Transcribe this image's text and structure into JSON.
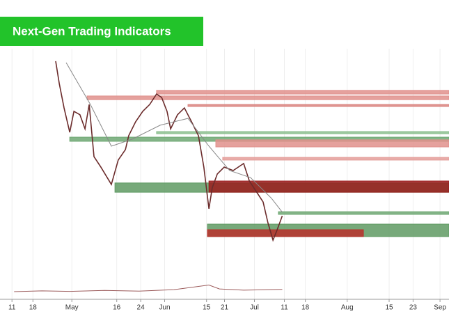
{
  "chart_data": {
    "type": "line",
    "title": "Next-Gen Trading Indicators",
    "xlim": [
      -4,
      146
    ],
    "ylim": [
      0,
      100
    ],
    "grid": true,
    "xticks": [
      {
        "value": 0,
        "label": "11"
      },
      {
        "value": 7,
        "label": "18"
      },
      {
        "value": 20,
        "label": "May"
      },
      {
        "value": 35,
        "label": "16"
      },
      {
        "value": 43,
        "label": "24"
      },
      {
        "value": 51,
        "label": "Jun"
      },
      {
        "value": 65,
        "label": "15"
      },
      {
        "value": 71,
        "label": "21"
      },
      {
        "value": 81,
        "label": "Jul"
      },
      {
        "value": 91,
        "label": "11"
      },
      {
        "value": 98,
        "label": "18"
      },
      {
        "value": 112,
        "label": "Aug"
      },
      {
        "value": 126,
        "label": "15"
      },
      {
        "value": 134,
        "label": "23"
      },
      {
        "value": 143,
        "label": "Sep"
      }
    ],
    "zones": [
      {
        "x": [
          48.3,
          146
        ],
        "values": [
          82.9,
          81.4
        ],
        "color": "#e0908c"
      },
      {
        "x": [
          25.1,
          146
        ],
        "values": [
          80.6,
          79.1
        ],
        "color": "#e0908c"
      },
      {
        "x": [
          58.8,
          146
        ],
        "values": [
          77.1,
          76.3
        ],
        "color": "#d9827e"
      },
      {
        "x": [
          19.3,
          146
        ],
        "values": [
          63.7,
          62.0
        ],
        "color": "#6fa873"
      },
      {
        "x": [
          48.3,
          146
        ],
        "values": [
          66.0,
          65.1
        ],
        "color": "#8cc08f"
      },
      {
        "x": [
          68.1,
          146
        ],
        "values": [
          62.6,
          59.7
        ],
        "color": "#e0908c"
      },
      {
        "x": [
          70.4,
          146
        ],
        "values": [
          55.4,
          54.3
        ],
        "color": "#e49e9a"
      },
      {
        "x": [
          34.4,
          146
        ],
        "values": [
          44.9,
          41.1
        ],
        "color": "#5f9a63"
      },
      {
        "x": [
          65.8,
          146
        ],
        "values": [
          45.7,
          41.1
        ],
        "color": "#9b1c1c"
      },
      {
        "x": [
          89.0,
          146
        ],
        "values": [
          33.1,
          32.0
        ],
        "color": "#6fa873"
      },
      {
        "x": [
          65.3,
          146
        ],
        "values": [
          28.0,
          22.9
        ],
        "color": "#5f9a63"
      },
      {
        "x": [
          65.3,
          117.4
        ],
        "values": [
          25.7,
          22.9
        ],
        "color": "#b8302c"
      }
    ],
    "series": [
      {
        "color": "#6b2b2b",
        "x": [
          14.6,
          15.8,
          17.4,
          19.3,
          20.7,
          22.7,
          24.4,
          25.8,
          27.4,
          29.7,
          33.2,
          35.5,
          37.9,
          39.0,
          41.3,
          43.7,
          46.0,
          48.3,
          50.0,
          51.8,
          53.0,
          55.3,
          57.6,
          60.0,
          62.3,
          64.1,
          65.8,
          66.9,
          68.6,
          70.9,
          73.9,
          77.4,
          79.3,
          81.6,
          83.9,
          85.5,
          87.2,
          88.6,
          90.3
        ],
        "values": [
          94.9,
          85.7,
          75.7,
          65.7,
          74.3,
          72.9,
          67.1,
          77.1,
          55.7,
          51.4,
          44.3,
          54.3,
          58.6,
          64.3,
          70.0,
          74.3,
          77.1,
          81.4,
          80.0,
          74.3,
          67.1,
          72.9,
          75.7,
          70.0,
          64.3,
          51.4,
          34.3,
          42.9,
          48.6,
          51.4,
          50.0,
          52.9,
          45.7,
          41.4,
          37.1,
          28.6,
          21.4,
          25.7,
          31.4
        ]
      },
      {
        "color": "#888888",
        "x": [
          18.1,
          26.2,
          33.2,
          40.2,
          49.5,
          58.8,
          65.8,
          72.7,
          79.7,
          86.7,
          90.3
        ],
        "values": [
          94.3,
          77.1,
          60.0,
          62.9,
          68.6,
          71.4,
          60.0,
          50.0,
          47.1,
          38.6,
          32.9
        ]
      },
      {
        "color": "#9b5a5a",
        "x": [
          0.7,
          10.0,
          19.3,
          30.9,
          42.5,
          54.1,
          65.8,
          69.3,
          77.4,
          90.3
        ],
        "values": [
          0.3,
          0.6,
          0.4,
          0.8,
          0.5,
          1.1,
          3.0,
          1.4,
          0.9,
          1.2
        ]
      }
    ]
  }
}
